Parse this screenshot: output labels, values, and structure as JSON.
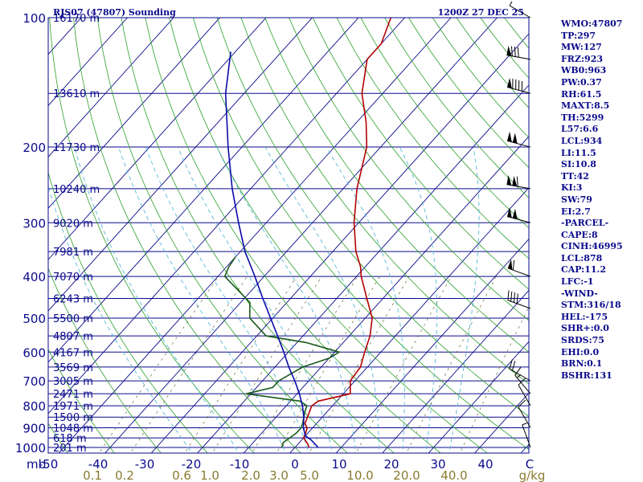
{
  "header": {
    "station": "RJS07 (47807) Sounding",
    "time": "1200Z 27 DEC 25"
  },
  "indices": [
    "WMO:47807",
    "TP:297",
    "MW:127",
    "FRZ:923",
    "WB0:963",
    "PW:0.37",
    "RH:61.5",
    "MAXT:8.5",
    "TH:5299",
    "L57:6.6",
    "LCL:934",
    "LI:11.5",
    "SI:10.8",
    "TT:42",
    "KI:3",
    "SW:79",
    "EI:2.7",
    "-PARCEL-",
    "CAPE:8",
    "CINH:46995",
    "LCL:878",
    "CAP:11.2",
    "LFC:-1",
    "-WIND-",
    "STM:316/18",
    "HEL:-175",
    "SHR+:0.0",
    "SRDS:75",
    "EHI:0.0",
    "BRN:0.1",
    "BSHR:131"
  ],
  "colors": {
    "frame": "#0a0a8c",
    "isobar": "#0a0a8c",
    "isotherm": "#0a0a8c",
    "dry_adiabat": "#2aa02a",
    "moist_adiabat": "#56b8d8",
    "mixing_ratio": "#6b6b3a",
    "temperature": "#b40000",
    "dewpoint": "#1a5a1a",
    "parcel": "#0a0aa8",
    "mixing_label": "#8a7a30",
    "wind": "#000000"
  },
  "chart_data": {
    "type": "line",
    "diagram": "skew-T log-P",
    "y_axis": {
      "label": "mb",
      "ticks": [
        100,
        200,
        300,
        400,
        500,
        600,
        700,
        800,
        900,
        1000
      ],
      "ylim": [
        1000,
        100
      ],
      "log_scale": true
    },
    "x_axis": {
      "ticks": [
        "-50",
        "-40",
        "-30",
        "-20",
        "-10",
        "0",
        "10",
        "20",
        "30",
        "40",
        "C"
      ],
      "unit": "C"
    },
    "mixing_ratio_labels": [
      "0.1",
      "0.2",
      "0.6",
      "1.0",
      "2.0",
      "3.0",
      "5.0",
      "10.0",
      "20.0",
      "40.0",
      "g/kg"
    ],
    "height_labels": [
      {
        "p": 100,
        "text": "16170 m"
      },
      {
        "p": 150,
        "text": "13610 m"
      },
      {
        "p": 200,
        "text": "11730 m"
      },
      {
        "p": 250,
        "text": "10240 m"
      },
      {
        "p": 300,
        "text": "9020 m"
      },
      {
        "p": 350,
        "text": "7981 m"
      },
      {
        "p": 400,
        "text": "7070 m"
      },
      {
        "p": 450,
        "text": "6243 m"
      },
      {
        "p": 500,
        "text": "5500 m"
      },
      {
        "p": 550,
        "text": "4807 m"
      },
      {
        "p": 600,
        "text": "4167 m"
      },
      {
        "p": 650,
        "text": "3569 m"
      },
      {
        "p": 700,
        "text": "3005 m"
      },
      {
        "p": 750,
        "text": "2471 m"
      },
      {
        "p": 800,
        "text": "1971 m"
      },
      {
        "p": 850,
        "text": "1500 m"
      },
      {
        "p": 900,
        "text": "1048 m"
      },
      {
        "p": 950,
        "text": "618 m"
      },
      {
        "p": 1000,
        "text": "201 m"
      }
    ],
    "series": [
      {
        "key": "temperature",
        "values": [
          [
            1000,
            3.0
          ],
          [
            980,
            2.0
          ],
          [
            950,
            0.0
          ],
          [
            925,
            -0.5
          ],
          [
            900,
            -1.2
          ],
          [
            880,
            -2.5
          ],
          [
            850,
            -3.2
          ],
          [
            800,
            -4.5
          ],
          [
            780,
            -4.0
          ],
          [
            750,
            1.5
          ],
          [
            700,
            -1.0
          ],
          [
            650,
            -1.5
          ],
          [
            600,
            -3.5
          ],
          [
            550,
            -5.5
          ],
          [
            500,
            -8.5
          ],
          [
            450,
            -13.5
          ],
          [
            400,
            -19.0
          ],
          [
            380,
            -21.0
          ],
          [
            350,
            -25.0
          ],
          [
            300,
            -31.0
          ],
          [
            250,
            -37.0
          ],
          [
            200,
            -43.0
          ],
          [
            175,
            -48.0
          ],
          [
            150,
            -54.5
          ],
          [
            125,
            -60.0
          ],
          [
            115,
            -60.0
          ],
          [
            100,
            -63.0
          ]
        ]
      },
      {
        "key": "dewpoint",
        "values": [
          [
            1000,
            -3.0
          ],
          [
            990,
            -3.0
          ],
          [
            975,
            -3.5
          ],
          [
            950,
            -3.0
          ],
          [
            925,
            -2.5
          ],
          [
            900,
            -2.5
          ],
          [
            880,
            -3.0
          ],
          [
            850,
            -4.0
          ],
          [
            820,
            -5.0
          ],
          [
            800,
            -5.5
          ],
          [
            780,
            -8.0
          ],
          [
            750,
            -21.0
          ],
          [
            725,
            -16.5
          ],
          [
            700,
            -16.5
          ],
          [
            650,
            -14.0
          ],
          [
            620,
            -10.0
          ],
          [
            600,
            -9.0
          ],
          [
            570,
            -18.0
          ],
          [
            550,
            -28.0
          ],
          [
            500,
            -35.0
          ],
          [
            460,
            -38.0
          ],
          [
            400,
            -48.5
          ],
          [
            380,
            -49.5
          ],
          [
            360,
            -50.0
          ]
        ]
      },
      {
        "key": "parcel",
        "values": [
          [
            1000,
            5.0
          ],
          [
            960,
            2.0
          ],
          [
            940,
            0.0
          ],
          [
            900,
            -2.0
          ],
          [
            850,
            -4.0
          ],
          [
            800,
            -6.5
          ],
          [
            750,
            -9.5
          ],
          [
            700,
            -13.0
          ],
          [
            650,
            -17.0
          ],
          [
            600,
            -21.0
          ],
          [
            550,
            -25.5
          ],
          [
            500,
            -30.5
          ],
          [
            450,
            -36.0
          ],
          [
            400,
            -42.0
          ],
          [
            350,
            -49.0
          ],
          [
            300,
            -56.0
          ],
          [
            250,
            -64.0
          ],
          [
            200,
            -73.0
          ],
          [
            150,
            -84.0
          ],
          [
            120,
            -91.0
          ]
        ]
      }
    ],
    "wind_barbs": [
      {
        "p": 100,
        "dir": 300,
        "spd": 5
      },
      {
        "p": 125,
        "dir": 280,
        "spd": 80
      },
      {
        "p": 150,
        "dir": 285,
        "spd": 90
      },
      {
        "p": 200,
        "dir": 285,
        "spd": 100
      },
      {
        "p": 250,
        "dir": 280,
        "spd": 110
      },
      {
        "p": 300,
        "dir": 285,
        "spd": 100
      },
      {
        "p": 400,
        "dir": 290,
        "spd": 60
      },
      {
        "p": 475,
        "dir": 290,
        "spd": 40
      },
      {
        "p": 700,
        "dir": 300,
        "spd": 20
      },
      {
        "p": 750,
        "dir": 320,
        "spd": 15
      },
      {
        "p": 800,
        "dir": 330,
        "spd": 10
      },
      {
        "p": 900,
        "dir": 330,
        "spd": 10
      },
      {
        "p": 1000,
        "dir": 340,
        "spd": 5
      }
    ]
  }
}
